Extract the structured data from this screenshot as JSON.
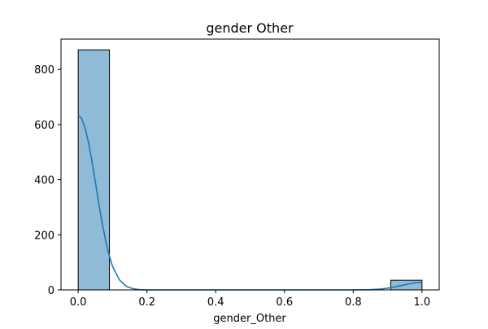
{
  "chart_data": {
    "type": "bar",
    "title": "gender Other",
    "xlabel": "gender_Other",
    "ylabel": "",
    "xlim": [
      -0.05,
      1.05
    ],
    "ylim": [
      0,
      910
    ],
    "bin_width": 0.0909,
    "bins": [
      {
        "x0": 0.0,
        "x1": 0.0909,
        "count": 871
      },
      {
        "x0": 0.9091,
        "x1": 1.0,
        "count": 35
      }
    ],
    "kde": {
      "x": [
        0.0,
        0.01,
        0.02,
        0.03,
        0.04,
        0.05,
        0.06,
        0.07,
        0.08,
        0.09,
        0.1,
        0.12,
        0.14,
        0.16,
        0.18,
        0.2,
        0.25,
        0.3,
        0.5,
        0.7,
        0.8,
        0.85,
        0.88,
        0.9,
        0.92,
        0.94,
        0.96,
        0.98,
        1.0
      ],
      "y": [
        634,
        622,
        588,
        535,
        467,
        391,
        313,
        241,
        178,
        126,
        85,
        36,
        13,
        4,
        1,
        0,
        0,
        0,
        0,
        0,
        0,
        1,
        3,
        6,
        11,
        16,
        21,
        26,
        28
      ]
    },
    "x_ticks": [
      {
        "value": 0.0,
        "label": "0.0"
      },
      {
        "value": 0.2,
        "label": "0.2"
      },
      {
        "value": 0.4,
        "label": "0.4"
      },
      {
        "value": 0.6,
        "label": "0.6"
      },
      {
        "value": 0.8,
        "label": "0.8"
      },
      {
        "value": 1.0,
        "label": "1.0"
      }
    ],
    "y_ticks": [
      {
        "value": 0,
        "label": "0"
      },
      {
        "value": 200,
        "label": "200"
      },
      {
        "value": 400,
        "label": "400"
      },
      {
        "value": 600,
        "label": "600"
      },
      {
        "value": 800,
        "label": "800"
      }
    ],
    "grid": false,
    "colors": {
      "bar_fill": "#1f77b4",
      "bar_fill_opacity": 0.5,
      "bar_edge": "#000000",
      "kde_line": "#1f77b4",
      "axis": "#000000"
    }
  }
}
